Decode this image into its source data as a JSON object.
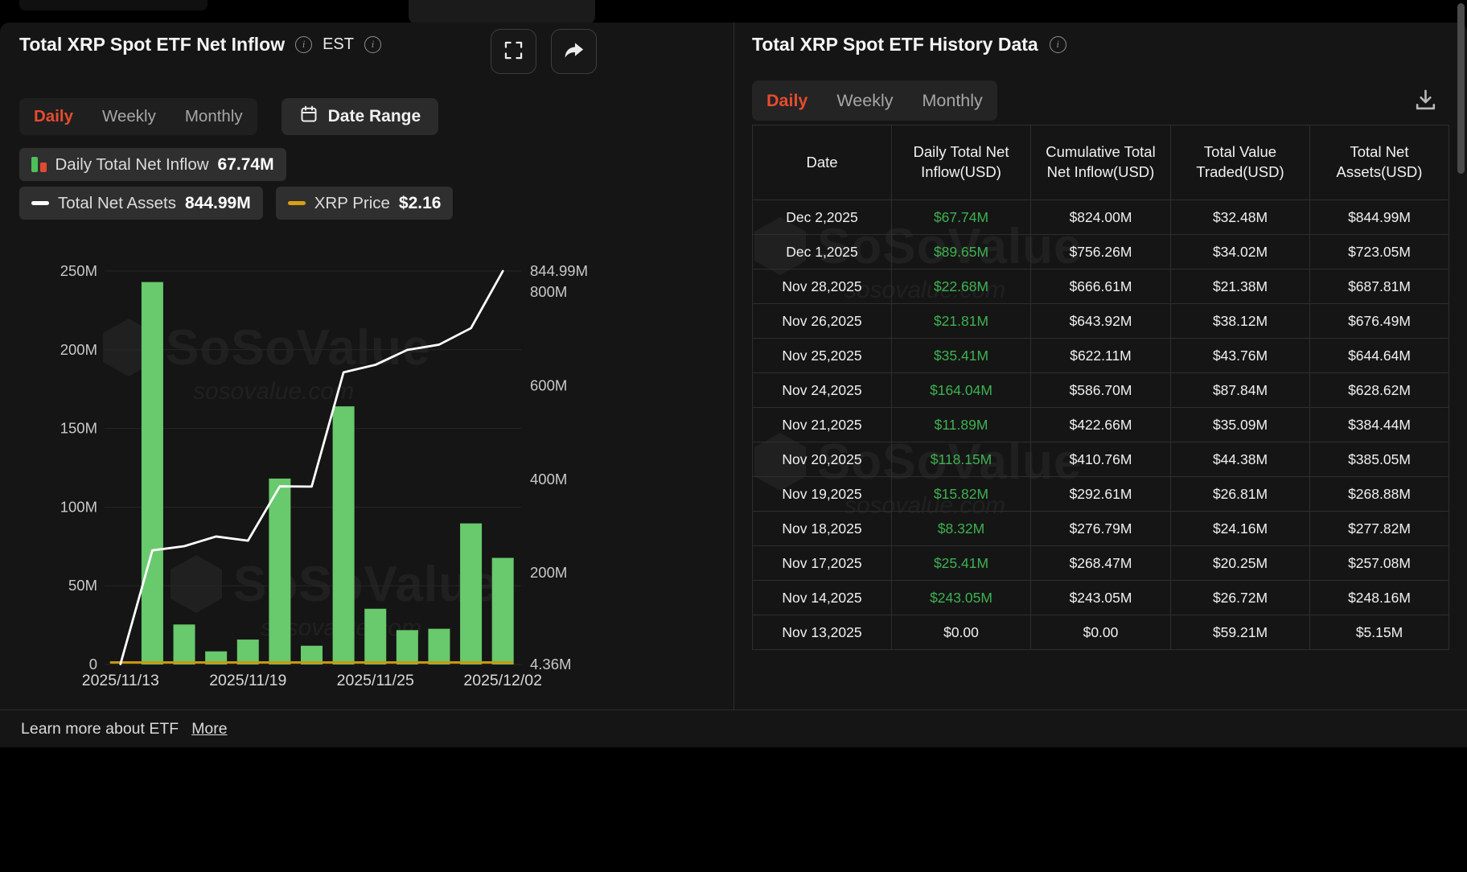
{
  "colors": {
    "accent_orange": "#e64c2e",
    "bar_green": "#68c96d",
    "table_green": "#3eb151",
    "assets_line_white": "#ffffff",
    "price_gold": "#c9970f",
    "panel_bg": "#151515"
  },
  "watermark": {
    "brand": "SoSoValue",
    "domain": "sosovalue.com"
  },
  "left_panel": {
    "title": "Total XRP Spot ETF Net Inflow",
    "est_label": "EST",
    "tabs": [
      "Daily",
      "Weekly",
      "Monthly"
    ],
    "active_tab": "Daily",
    "date_range_label": "Date Range",
    "legend": [
      {
        "label": "Daily Total Net Inflow",
        "value": "67.74M"
      },
      {
        "label": "Total Net Assets",
        "value": "844.99M"
      },
      {
        "label": "XRP Price",
        "value": "$2.16"
      }
    ],
    "footer": {
      "text": "Learn more about ETF",
      "link_label": "More"
    }
  },
  "chart_data": {
    "type": "bar+line",
    "title": "Total XRP Spot ETF Net Inflow",
    "x": [
      "2025/11/13",
      "2025/11/14",
      "2025/11/17",
      "2025/11/18",
      "2025/11/19",
      "2025/11/20",
      "2025/11/21",
      "2025/11/24",
      "2025/11/25",
      "2025/11/26",
      "2025/11/28",
      "2025/12/01",
      "2025/12/02"
    ],
    "series": [
      {
        "name": "Daily Total Net Inflow (USD, millions)",
        "type": "bar",
        "axis": "left",
        "color": "#68c96d",
        "values": [
          0,
          243.05,
          25.41,
          8.32,
          15.82,
          118.15,
          11.89,
          164.04,
          35.41,
          21.81,
          22.68,
          89.65,
          67.74
        ]
      },
      {
        "name": "Total Net Assets (USD, millions)",
        "type": "line",
        "axis": "right",
        "color": "#ffffff",
        "values": [
          5.15,
          248.16,
          257.08,
          277.82,
          268.88,
          385.05,
          384.44,
          628.62,
          644.64,
          676.49,
          687.81,
          723.05,
          844.99
        ]
      },
      {
        "name": "XRP Price",
        "type": "line",
        "axis": "price",
        "color": "#c9970f",
        "render": "flat-bottom",
        "current": "$2.16"
      }
    ],
    "left_axis": {
      "min": 0,
      "max": 250,
      "ticks": [
        {
          "value": 0,
          "label": "0"
        },
        {
          "value": 50,
          "label": "50M"
        },
        {
          "value": 100,
          "label": "100M"
        },
        {
          "value": 150,
          "label": "150M"
        },
        {
          "value": 200,
          "label": "200M"
        },
        {
          "value": 250,
          "label": "250M"
        }
      ]
    },
    "right_axis": {
      "min": 4.36,
      "max": 844.99,
      "ticks": [
        {
          "value": 4.36,
          "label": "4.36M"
        },
        {
          "value": 200,
          "label": "200M"
        },
        {
          "value": 400,
          "label": "400M"
        },
        {
          "value": 600,
          "label": "600M"
        },
        {
          "value": 800,
          "label": "800M"
        },
        {
          "value": 844.99,
          "label": "844.99M"
        }
      ]
    },
    "x_tick_labels": [
      {
        "index": 0,
        "label": "2025/11/13"
      },
      {
        "index": 4,
        "label": "2025/11/19"
      },
      {
        "index": 8,
        "label": "2025/11/25"
      },
      {
        "index": 12,
        "label": "2025/12/02"
      }
    ],
    "grid": true,
    "legend_position": "top-left"
  },
  "right_panel": {
    "title": "Total XRP Spot ETF History Data",
    "tabs": [
      "Daily",
      "Weekly",
      "Monthly"
    ],
    "active_tab": "Daily",
    "table": {
      "headers": [
        "Date",
        "Daily Total Net Inflow(USD)",
        "Cumulative Total Net Inflow(USD)",
        "Total Value Traded(USD)",
        "Total Net Assets(USD)"
      ],
      "rows": [
        {
          "date": "Dec 2,2025",
          "daily_inflow": "$67.74M",
          "positive": true,
          "cumulative": "$824.00M",
          "value_traded": "$32.48M",
          "net_assets": "$844.99M"
        },
        {
          "date": "Dec 1,2025",
          "daily_inflow": "$89.65M",
          "positive": true,
          "cumulative": "$756.26M",
          "value_traded": "$34.02M",
          "net_assets": "$723.05M"
        },
        {
          "date": "Nov 28,2025",
          "daily_inflow": "$22.68M",
          "positive": true,
          "cumulative": "$666.61M",
          "value_traded": "$21.38M",
          "net_assets": "$687.81M"
        },
        {
          "date": "Nov 26,2025",
          "daily_inflow": "$21.81M",
          "positive": true,
          "cumulative": "$643.92M",
          "value_traded": "$38.12M",
          "net_assets": "$676.49M"
        },
        {
          "date": "Nov 25,2025",
          "daily_inflow": "$35.41M",
          "positive": true,
          "cumulative": "$622.11M",
          "value_traded": "$43.76M",
          "net_assets": "$644.64M"
        },
        {
          "date": "Nov 24,2025",
          "daily_inflow": "$164.04M",
          "positive": true,
          "cumulative": "$586.70M",
          "value_traded": "$87.84M",
          "net_assets": "$628.62M"
        },
        {
          "date": "Nov 21,2025",
          "daily_inflow": "$11.89M",
          "positive": true,
          "cumulative": "$422.66M",
          "value_traded": "$35.09M",
          "net_assets": "$384.44M"
        },
        {
          "date": "Nov 20,2025",
          "daily_inflow": "$118.15M",
          "positive": true,
          "cumulative": "$410.76M",
          "value_traded": "$44.38M",
          "net_assets": "$385.05M"
        },
        {
          "date": "Nov 19,2025",
          "daily_inflow": "$15.82M",
          "positive": true,
          "cumulative": "$292.61M",
          "value_traded": "$26.81M",
          "net_assets": "$268.88M"
        },
        {
          "date": "Nov 18,2025",
          "daily_inflow": "$8.32M",
          "positive": true,
          "cumulative": "$276.79M",
          "value_traded": "$24.16M",
          "net_assets": "$277.82M"
        },
        {
          "date": "Nov 17,2025",
          "daily_inflow": "$25.41M",
          "positive": true,
          "cumulative": "$268.47M",
          "value_traded": "$20.25M",
          "net_assets": "$257.08M"
        },
        {
          "date": "Nov 14,2025",
          "daily_inflow": "$243.05M",
          "positive": true,
          "cumulative": "$243.05M",
          "value_traded": "$26.72M",
          "net_assets": "$248.16M"
        },
        {
          "date": "Nov 13,2025",
          "daily_inflow": "$0.00",
          "positive": false,
          "cumulative": "$0.00",
          "value_traded": "$59.21M",
          "net_assets": "$5.15M"
        }
      ]
    }
  }
}
